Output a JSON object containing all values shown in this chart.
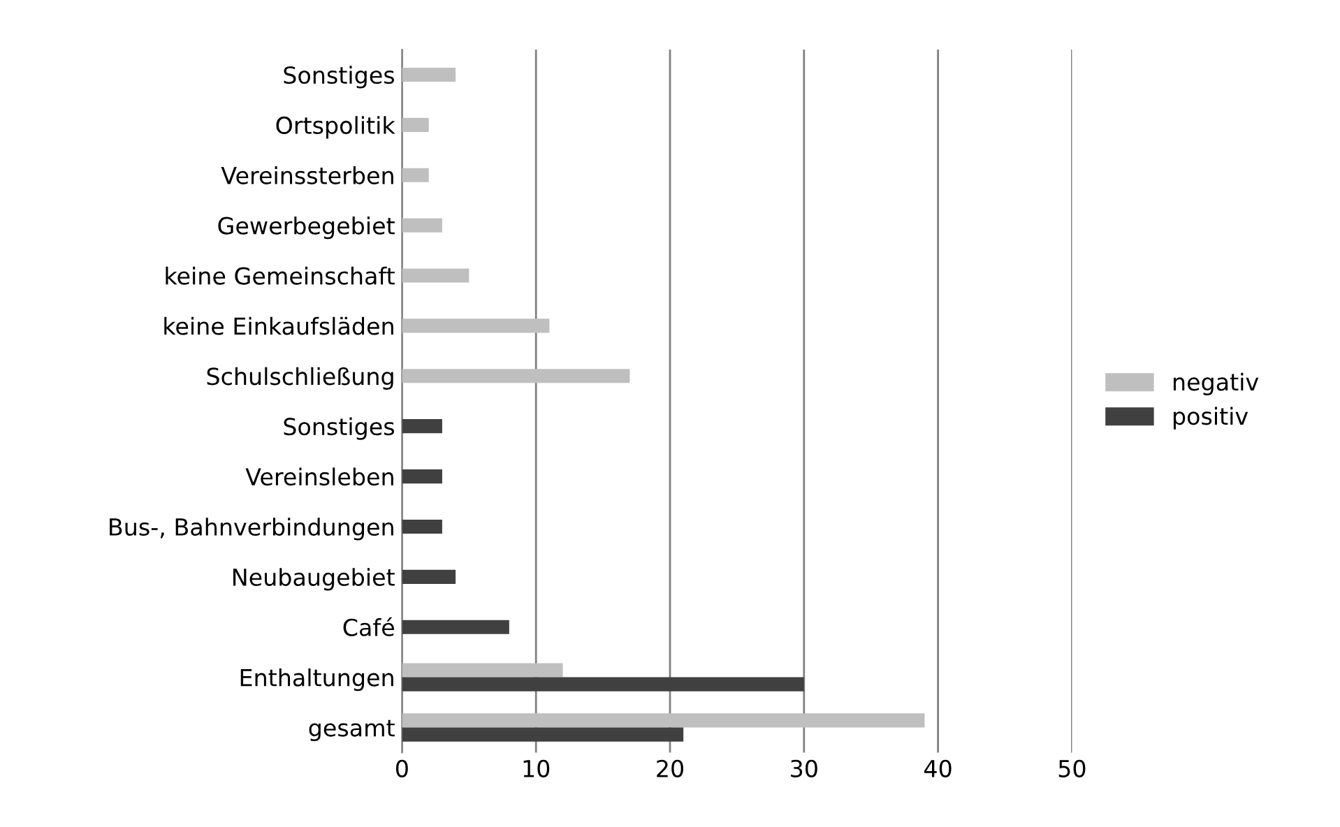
{
  "chart_data": {
    "type": "bar",
    "orientation": "horizontal",
    "categories": [
      "Sonstiges",
      "Ortspolitik",
      "Vereinssterben",
      "Gewerbegebiet",
      "keine Gemeinschaft",
      "keine Einkaufsläden",
      "Schulschließung",
      "Sonstiges",
      "Vereinsleben",
      "Bus-, Bahnverbindungen",
      "Neubaugebiet",
      "Café",
      "Enthaltungen",
      "gesamt"
    ],
    "series": [
      {
        "name": "negativ",
        "color": "#bfbfbf",
        "values": [
          4,
          2,
          2,
          3,
          5,
          11,
          17,
          null,
          null,
          null,
          null,
          null,
          12,
          39
        ]
      },
      {
        "name": "positiv",
        "color": "#404040",
        "values": [
          null,
          null,
          null,
          null,
          null,
          null,
          null,
          3,
          3,
          3,
          4,
          8,
          30,
          21
        ]
      }
    ],
    "xlim": [
      0,
      50
    ],
    "xticks": [
      0,
      10,
      20,
      30,
      40,
      50
    ],
    "grid": "x",
    "legend": "right"
  }
}
